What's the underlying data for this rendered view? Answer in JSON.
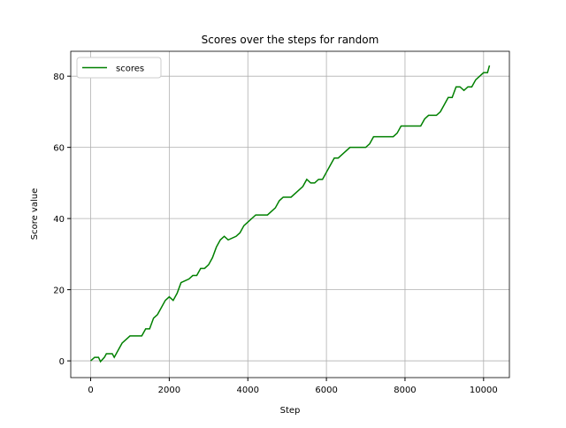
{
  "chart_data": {
    "type": "line",
    "title": "Scores over the steps for random",
    "xlabel": "Step",
    "ylabel": "Score value",
    "x": [
      0,
      100,
      200,
      250,
      350,
      400,
      550,
      600,
      700,
      800,
      900,
      1000,
      1100,
      1300,
      1400,
      1500,
      1600,
      1700,
      1800,
      1900,
      2000,
      2100,
      2200,
      2300,
      2500,
      2600,
      2700,
      2800,
      2900,
      3000,
      3100,
      3200,
      3300,
      3400,
      3500,
      3700,
      3800,
      3900,
      4000,
      4100,
      4200,
      4500,
      4600,
      4700,
      4800,
      4900,
      5100,
      5300,
      5400,
      5500,
      5600,
      5700,
      5800,
      5900,
      6000,
      6100,
      6200,
      6300,
      6400,
      6600,
      6800,
      7000,
      7100,
      7200,
      7400,
      7500,
      7700,
      7800,
      7900,
      8100,
      8300,
      8400,
      8500,
      8600,
      8800,
      8900,
      9000,
      9100,
      9200,
      9300,
      9400,
      9500,
      9600,
      9700,
      9800,
      9900,
      10000,
      10100,
      10150
    ],
    "series": [
      {
        "name": "scores",
        "color": "#008000",
        "values": [
          0,
          1,
          1,
          -0.2,
          1,
          2,
          2,
          1,
          3,
          5,
          6,
          7,
          7,
          7,
          9,
          9,
          12,
          13,
          15,
          17,
          18,
          17,
          19,
          22,
          23,
          24,
          24,
          26,
          26,
          27,
          29,
          32,
          34,
          35,
          34,
          35,
          36,
          38,
          39,
          40,
          41,
          41,
          42,
          43,
          45,
          46,
          46,
          48,
          49,
          51,
          50,
          50,
          51,
          51,
          53,
          55,
          57,
          57,
          58,
          60,
          60,
          60,
          61,
          63,
          63,
          63,
          63,
          64,
          66,
          66,
          66,
          66,
          68,
          69,
          69,
          70,
          72,
          74,
          74,
          77,
          77,
          76,
          77,
          77,
          79,
          80,
          81,
          81,
          83
        ]
      }
    ],
    "xlim": [
      -507,
      10657
    ],
    "ylim": [
      -4.7,
      87
    ],
    "xticks": [
      0,
      2000,
      4000,
      6000,
      8000,
      10000
    ],
    "yticks": [
      0,
      20,
      40,
      60,
      80
    ],
    "grid": true,
    "legend": "upper left"
  }
}
